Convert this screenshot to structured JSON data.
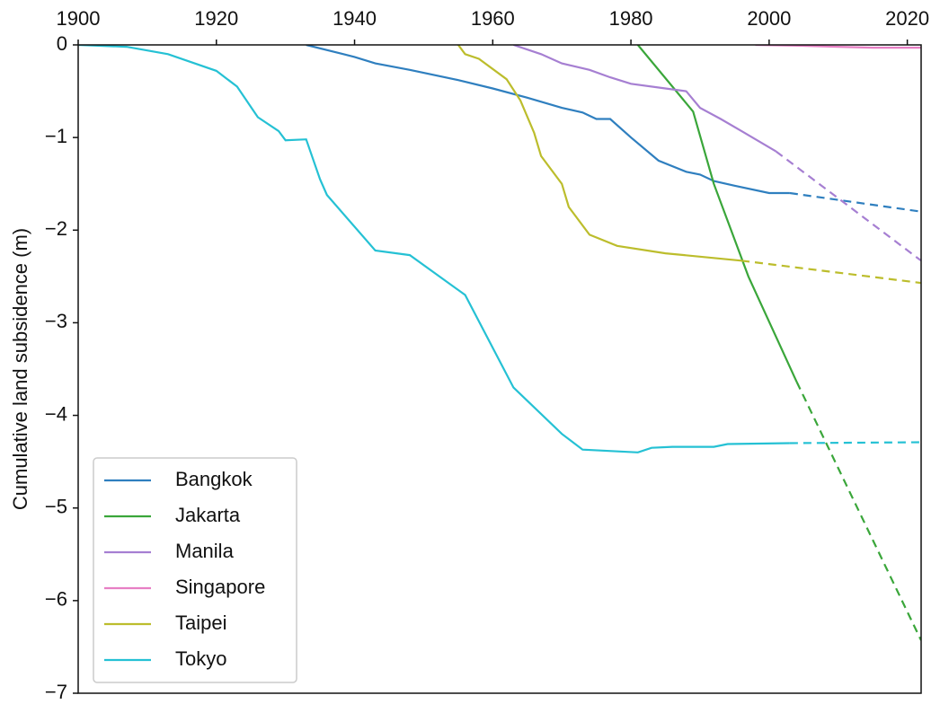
{
  "chart_data": {
    "type": "line",
    "y_label": "Cumulative land subsidence (m)",
    "xlim": [
      1900,
      2022
    ],
    "xticks": [
      1900,
      1920,
      1940,
      1960,
      1980,
      2000,
      2020
    ],
    "ylim": [
      -7,
      0
    ],
    "yticks": [
      {
        "value": 0,
        "label": "0"
      },
      {
        "value": -1,
        "label": "−1"
      },
      {
        "value": -2,
        "label": "−2"
      },
      {
        "value": -3,
        "label": "−3"
      },
      {
        "value": -4,
        "label": "−4"
      },
      {
        "value": -5,
        "label": "−5"
      },
      {
        "value": -6,
        "label": "−6"
      },
      {
        "value": -7,
        "label": "−7"
      }
    ],
    "legend": "lower-left",
    "series": [
      {
        "name": "Bangkok",
        "color": "#2f7fbf",
        "x": [
          1933,
          1940,
          1943,
          1948,
          1955,
          1960,
          1965,
          1970,
          1973,
          1975,
          1977,
          1980,
          1984,
          1988,
          1990,
          1992,
          1995,
          2000,
          2003
        ],
        "values": [
          0,
          -0.13,
          -0.2,
          -0.27,
          -0.38,
          -0.47,
          -0.57,
          -0.68,
          -0.73,
          -0.8,
          -0.8,
          -1.0,
          -1.25,
          -1.37,
          -1.4,
          -1.47,
          -1.52,
          -1.6,
          -1.6
        ],
        "projection": {
          "x": [
            2003,
            2022
          ],
          "values": [
            -1.6,
            -1.8
          ]
        }
      },
      {
        "name": "Jakarta",
        "color": "#3aa63a",
        "x": [
          1981,
          1989,
          1992,
          1995,
          1997,
          2004
        ],
        "values": [
          0,
          -0.72,
          -1.5,
          -2.1,
          -2.5,
          -3.64
        ],
        "projection": {
          "x": [
            2004,
            2022
          ],
          "values": [
            -3.64,
            -6.43
          ]
        }
      },
      {
        "name": "Manila",
        "color": "#a67fd2",
        "x": [
          1963,
          1967,
          1970,
          1974,
          1977,
          1980,
          1985,
          1988,
          1990,
          1993,
          1996,
          2001
        ],
        "values": [
          0,
          -0.1,
          -0.2,
          -0.27,
          -0.35,
          -0.42,
          -0.47,
          -0.5,
          -0.68,
          -0.8,
          -0.93,
          -1.15
        ],
        "projection": {
          "x": [
            2001,
            2022
          ],
          "values": [
            -1.15,
            -2.33
          ]
        }
      },
      {
        "name": "Singapore",
        "color": "#e77fc4",
        "x": [
          1998,
          2005,
          2010,
          2015,
          2022
        ],
        "values": [
          0,
          -0.01,
          -0.02,
          -0.03,
          -0.03
        ]
      },
      {
        "name": "Taipei",
        "color": "#bcbd2c",
        "x": [
          1955,
          1956,
          1958,
          1962,
          1964,
          1966,
          1967,
          1970,
          1971,
          1974,
          1978,
          1985,
          1996
        ],
        "values": [
          0,
          -0.1,
          -0.15,
          -0.37,
          -0.6,
          -0.95,
          -1.2,
          -1.5,
          -1.75,
          -2.05,
          -2.17,
          -2.25,
          -2.33
        ],
        "projection": {
          "x": [
            1996,
            2022
          ],
          "values": [
            -2.33,
            -2.57
          ]
        }
      },
      {
        "name": "Tokyo",
        "color": "#25c1d4",
        "x": [
          1900,
          1907,
          1913,
          1920,
          1923,
          1926,
          1929,
          1930,
          1933,
          1935,
          1936,
          1943,
          1948,
          1956,
          1963,
          1970,
          1973,
          1981,
          1983,
          1986,
          1992,
          1994,
          2003
        ],
        "values": [
          0,
          -0.02,
          -0.1,
          -0.28,
          -0.45,
          -0.78,
          -0.93,
          -1.03,
          -1.02,
          -1.45,
          -1.62,
          -2.22,
          -2.27,
          -2.7,
          -3.7,
          -4.2,
          -4.37,
          -4.4,
          -4.35,
          -4.34,
          -4.34,
          -4.31,
          -4.3
        ],
        "projection": {
          "x": [
            2003,
            2022
          ],
          "values": [
            -4.3,
            -4.29
          ]
        }
      }
    ]
  }
}
